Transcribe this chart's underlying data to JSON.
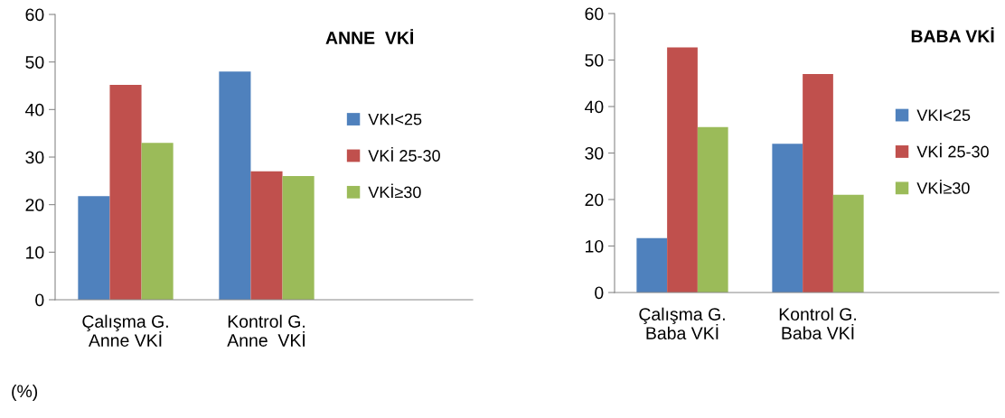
{
  "chart_data": [
    {
      "type": "bar",
      "title": "ANNE  VKİ",
      "categories": [
        "Çalışma G.\nAnne VKİ",
        "Kontrol G.\nAnne  VKİ"
      ],
      "series": [
        {
          "name": "VKI<25",
          "color": "#4f81bd",
          "values": [
            21.8,
            48
          ]
        },
        {
          "name": "VKİ 25-30",
          "color": "#c0504d",
          "values": [
            45.2,
            27
          ]
        },
        {
          "name": "VKİ≥30",
          "color": "#9bbb59",
          "values": [
            33,
            26
          ]
        }
      ],
      "ylim": [
        0,
        60
      ],
      "yticks": [
        0,
        10,
        20,
        30,
        40,
        50,
        60
      ],
      "grid": false,
      "legend": "right",
      "annotations": [
        "(%)"
      ]
    },
    {
      "type": "bar",
      "title": "BABA VKİ",
      "categories": [
        "Çalışma G.\nBaba VKİ",
        "Kontrol G.\nBaba VKİ"
      ],
      "series": [
        {
          "name": "VKI<25",
          "color": "#4f81bd",
          "values": [
            11.7,
            32
          ]
        },
        {
          "name": "VKİ 25-30",
          "color": "#c0504d",
          "values": [
            52.7,
            47
          ]
        },
        {
          "name": "VKİ≥30",
          "color": "#9bbb59",
          "values": [
            35.6,
            21
          ]
        }
      ],
      "ylim": [
        0,
        60
      ],
      "yticks": [
        0,
        10,
        20,
        30,
        40,
        50,
        60
      ],
      "grid": false,
      "legend": "right"
    }
  ]
}
